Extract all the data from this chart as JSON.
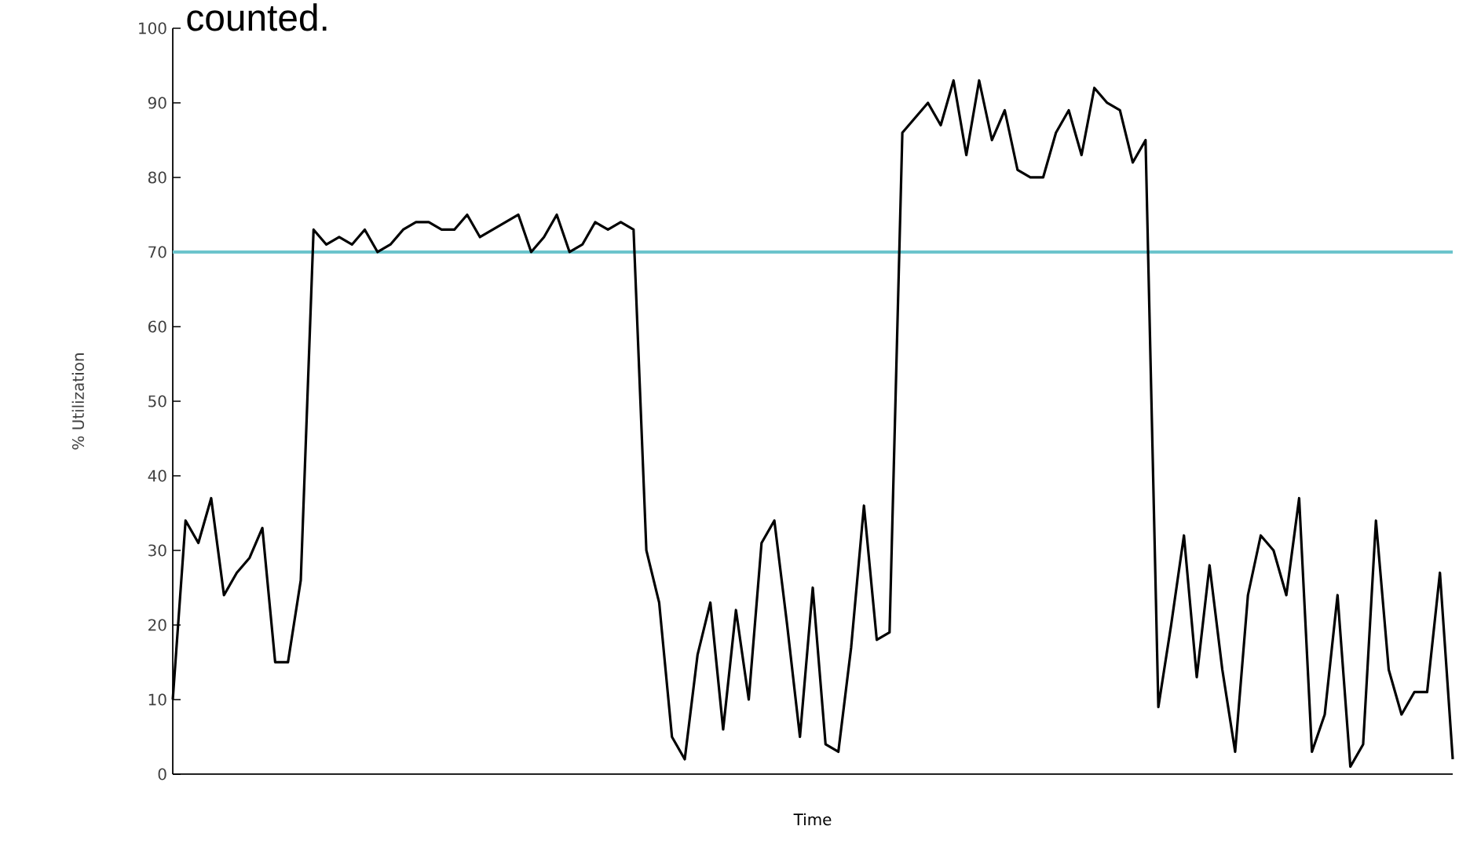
{
  "chart_data": {
    "type": "line",
    "ylabel": "% Utilization",
    "xlabel": "Time",
    "annotations": [
      "counted."
    ],
    "categories": [
      null,
      null,
      null,
      null,
      null,
      null,
      null,
      null,
      null,
      null,
      null,
      null,
      null,
      null,
      null,
      null,
      null,
      null,
      null,
      null,
      null,
      null,
      null,
      null,
      null,
      null,
      null,
      null,
      null,
      null,
      null,
      null,
      null,
      null,
      null,
      null,
      null,
      null,
      null,
      null,
      null,
      null,
      null,
      null,
      null,
      null,
      null,
      null,
      null,
      null,
      null,
      null,
      null,
      null,
      null,
      null,
      null,
      null,
      null,
      null,
      null,
      null,
      null,
      null,
      null,
      null,
      null,
      null,
      null,
      null,
      null,
      null,
      null,
      null,
      null,
      null,
      null,
      null,
      null,
      null,
      null,
      null,
      null,
      null,
      null,
      null,
      null,
      null,
      null,
      null,
      null,
      null,
      null,
      null,
      null,
      null,
      null,
      null,
      null,
      null,
      null
    ],
    "series": [
      {
        "color": "#000000",
        "values": [
          10,
          34,
          31,
          37,
          24,
          27,
          29,
          33,
          15,
          15,
          26,
          73,
          71,
          72,
          71,
          73,
          70,
          71,
          73,
          74,
          74,
          73,
          73,
          75,
          72,
          73,
          74,
          75,
          70,
          72,
          75,
          70,
          71,
          74,
          73,
          74,
          73,
          30,
          23,
          5,
          2,
          16,
          23,
          6,
          22,
          10,
          31,
          34,
          20,
          5,
          25,
          4,
          3,
          17,
          36,
          18,
          19,
          86,
          88,
          90,
          87,
          93,
          83,
          93,
          85,
          89,
          81,
          80,
          80,
          86,
          89,
          83,
          92,
          90,
          89,
          82,
          85,
          9,
          20,
          32,
          13,
          28,
          14,
          3,
          24,
          32,
          30,
          24,
          37,
          3,
          8,
          24,
          1,
          4,
          34,
          14,
          8,
          11,
          11,
          27,
          2
        ]
      }
    ],
    "ylim": [
      0,
      100
    ],
    "yticks": [
      0,
      10,
      20,
      30,
      40,
      50,
      60,
      70,
      80,
      90,
      100
    ],
    "ref_lines": [
      {
        "axis": "y",
        "value": 70,
        "color": "#6cc4cc"
      }
    ],
    "grid": false,
    "marker": "none",
    "line_style": "solid"
  }
}
